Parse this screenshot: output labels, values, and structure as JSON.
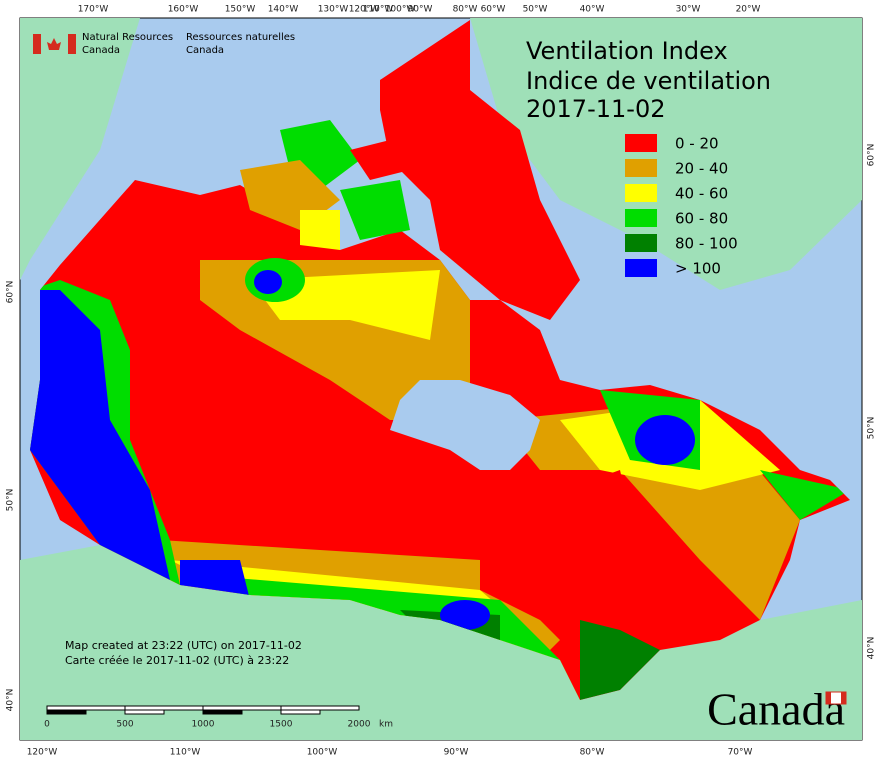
{
  "header": {
    "org_en": [
      "Natural Resources",
      "Canada"
    ],
    "org_fr": [
      "Ressources naturelles",
      "Canada"
    ]
  },
  "title": {
    "lines": [
      "Ventilation Index",
      "Indice de ventilation",
      "2017-11-02"
    ]
  },
  "legend": {
    "items": [
      {
        "label": "0 - 20",
        "color": "#ff0000"
      },
      {
        "label": "20 - 40",
        "color": "#e0a000"
      },
      {
        "label": "40 - 60",
        "color": "#ffff00"
      },
      {
        "label": "60 - 80",
        "color": "#00dd00"
      },
      {
        "label": "80 - 100",
        "color": "#008000"
      },
      {
        "label": "> 100",
        "color": "#0000ff"
      }
    ]
  },
  "graticule": {
    "top": [
      "170°W",
      "160°W",
      "150°W",
      "140°W",
      "130°W",
      "120°W",
      "110°W",
      "100°W",
      "90°W",
      "80°W",
      "60°W",
      "50°W",
      "40°W",
      "30°W",
      "20°W"
    ],
    "bottom": [
      "120°W",
      "110°W",
      "100°W",
      "90°W",
      "80°W",
      "70°W"
    ],
    "left": [
      "60°N",
      "50°N",
      "40°N"
    ],
    "right": [
      "60°N",
      "50°N",
      "40°N"
    ]
  },
  "footer": {
    "notes": [
      "Map created at 23:22 (UTC) on 2017-11-02",
      "Carte créée le 2017-11-02 (UTC) à 23:22"
    ]
  },
  "scale_bar": {
    "labels": [
      "0",
      "500",
      "1000",
      "1500",
      "2000"
    ],
    "unit": "km"
  },
  "wordmark": "Canada"
}
